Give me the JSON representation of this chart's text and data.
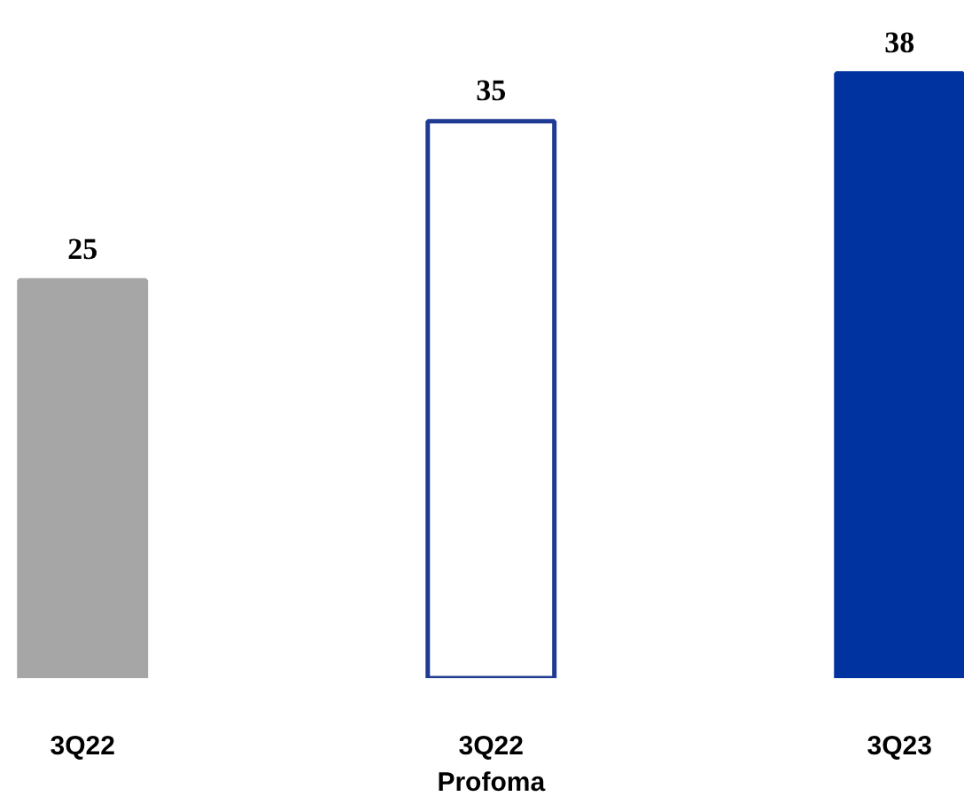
{
  "chart_data": {
    "type": "bar",
    "categories": [
      "3Q22",
      "3Q22\nProfoma",
      "3Q23"
    ],
    "values": [
      25,
      35,
      38
    ],
    "colors": [
      "#a6a6a6",
      "#ffffff",
      "#0033a0"
    ],
    "data_labels": true
  }
}
